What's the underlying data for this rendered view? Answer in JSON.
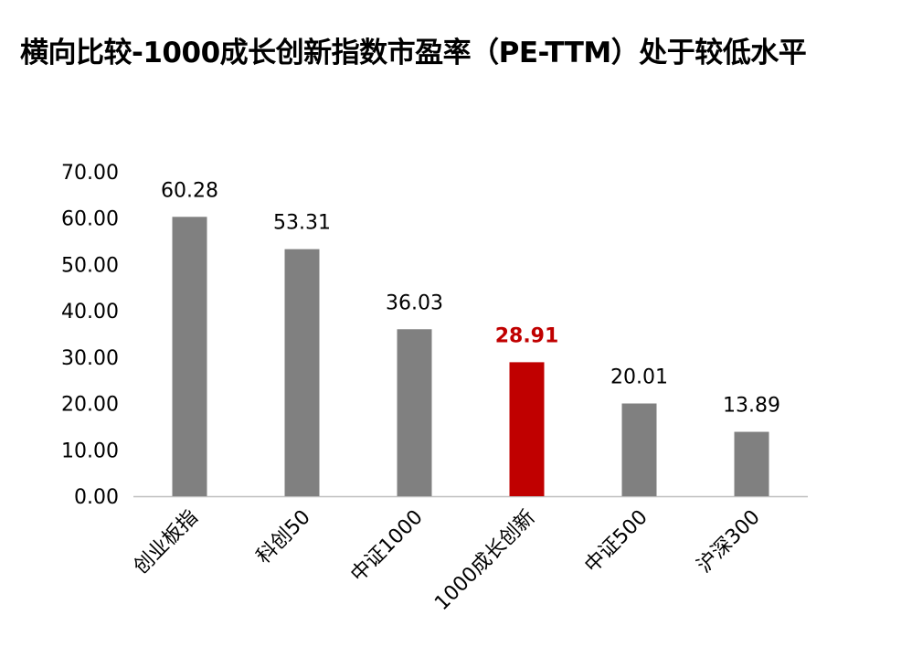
{
  "chart_data": {
    "type": "bar",
    "title": "横向比较-1000成长创新指数市盈率（PE-TTM）处于较低水平",
    "categories": [
      "创业板指",
      "科创50",
      "中证1000",
      "1000成长创新",
      "中证500",
      "沪深300"
    ],
    "values": [
      60.28,
      53.31,
      36.03,
      28.91,
      20.01,
      13.89
    ],
    "data_labels": [
      "60.28",
      "53.31",
      "36.03",
      "28.91",
      "20.01",
      "13.89"
    ],
    "y_ticks": [
      "0.00",
      "10.00",
      "20.00",
      "30.00",
      "40.00",
      "50.00",
      "60.00",
      "70.00"
    ],
    "ylim": [
      0,
      70
    ],
    "xlabel": "",
    "ylabel": "",
    "grid": false,
    "legend": "none",
    "highlight_index": 3,
    "colors": {
      "bar": "#808080",
      "highlight": "#C00000",
      "axis": "#BFBFBF"
    }
  }
}
